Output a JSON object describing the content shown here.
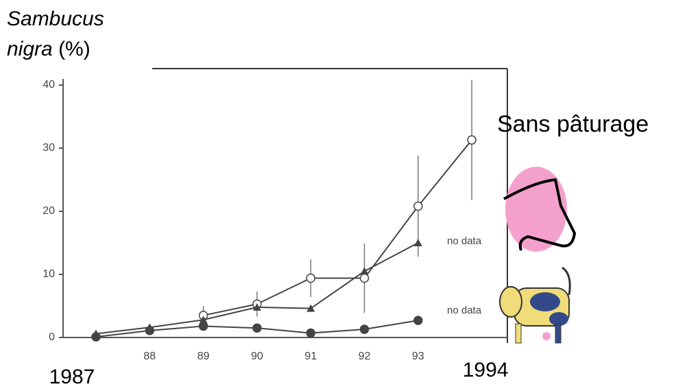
{
  "chart_data": {
    "type": "line",
    "ylabel_italic": "Sambucus nigra",
    "ylabel_unit": "(%)",
    "categories": [
      "1987",
      "88",
      "89",
      "90",
      "91",
      "92",
      "93",
      "1994"
    ],
    "ylim": [
      0,
      40
    ],
    "yticks": [
      0,
      10,
      20,
      30,
      40
    ],
    "series": [
      {
        "marker": "open-circle",
        "color": "#444444",
        "values": [
          null,
          null,
          3.5,
          5.3,
          9.4,
          9.4,
          20.8,
          31.3
        ],
        "errors": [
          null,
          null,
          1.5,
          2,
          3,
          5.5,
          8,
          9.5
        ]
      },
      {
        "marker": "triangle",
        "color": "#444444",
        "values": [
          0.6,
          1.6,
          2.8,
          4.8,
          4.6,
          10.5,
          15.0,
          null
        ]
      },
      {
        "marker": "filled-circle",
        "color": "#444444",
        "values": [
          0.1,
          1.1,
          1.8,
          1.5,
          0.7,
          1.3,
          2.7,
          null
        ]
      }
    ],
    "annotations": [
      "no data",
      "no data",
      "Sans pâturage"
    ]
  }
}
